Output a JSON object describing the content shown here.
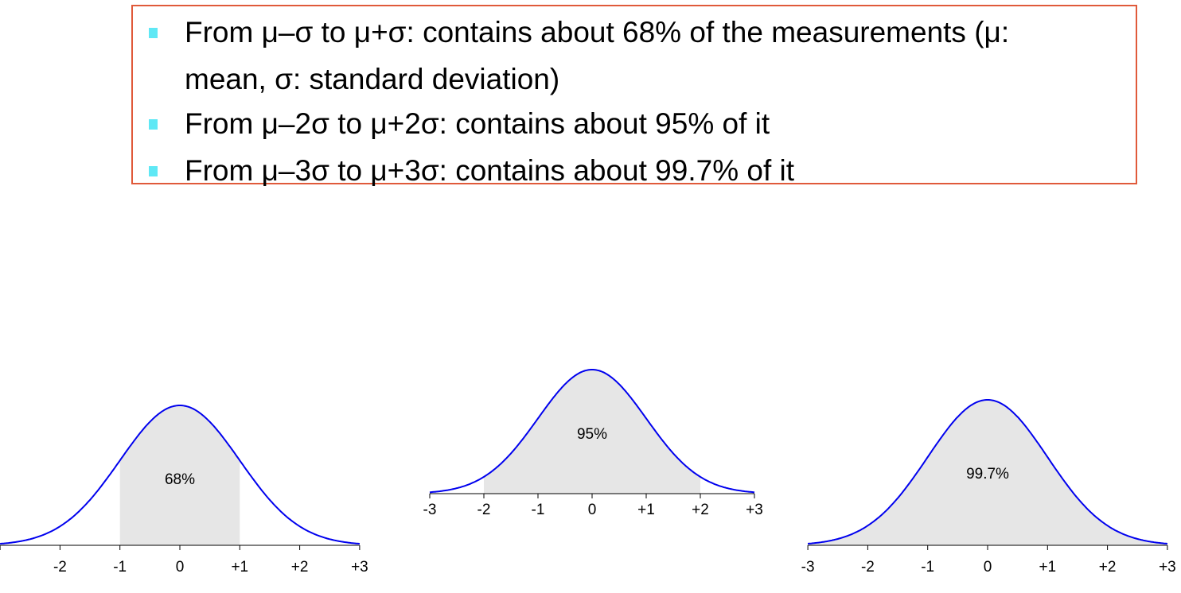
{
  "rules": [
    {
      "lines": [
        "From μ–σ to μ+σ: contains about 68% of the measurements  (μ:",
        "mean, σ: standard deviation)"
      ]
    },
    {
      "lines": [
        "From μ–2σ to μ+2σ: contains about 95% of it"
      ]
    },
    {
      "lines": [
        "From μ–3σ to μ+3σ: contains about 99.7% of it"
      ]
    }
  ],
  "colors": {
    "box_border": "#e05a3a",
    "bullet": "#5fe8f5",
    "curve": "#0000ee",
    "shade": "#e6e6e6"
  },
  "chart_data": [
    {
      "type": "area",
      "label": "68%",
      "shaded_range": [
        -1,
        1
      ],
      "xlim": [
        -3,
        3
      ],
      "tick_values": [
        -3,
        -2,
        -1,
        0,
        1,
        2,
        3
      ],
      "tick_labels": [
        "",
        "-2",
        "-1",
        "0",
        "+1",
        "+2",
        "+3"
      ]
    },
    {
      "type": "area",
      "label": "95%",
      "shaded_range": [
        -2,
        2
      ],
      "xlim": [
        -3,
        3
      ],
      "tick_values": [
        -3,
        -2,
        -1,
        0,
        1,
        2,
        3
      ],
      "tick_labels": [
        "-3",
        "-2",
        "-1",
        "0",
        "+1",
        "+2",
        "+3"
      ]
    },
    {
      "type": "area",
      "label": "99.7%",
      "shaded_range": [
        -3,
        3
      ],
      "xlim": [
        -3,
        3
      ],
      "tick_values": [
        -3,
        -2,
        -1,
        0,
        1,
        2,
        3
      ],
      "tick_labels": [
        "-3",
        "-2",
        "-1",
        "0",
        "+1",
        "+2",
        "+3"
      ]
    }
  ]
}
